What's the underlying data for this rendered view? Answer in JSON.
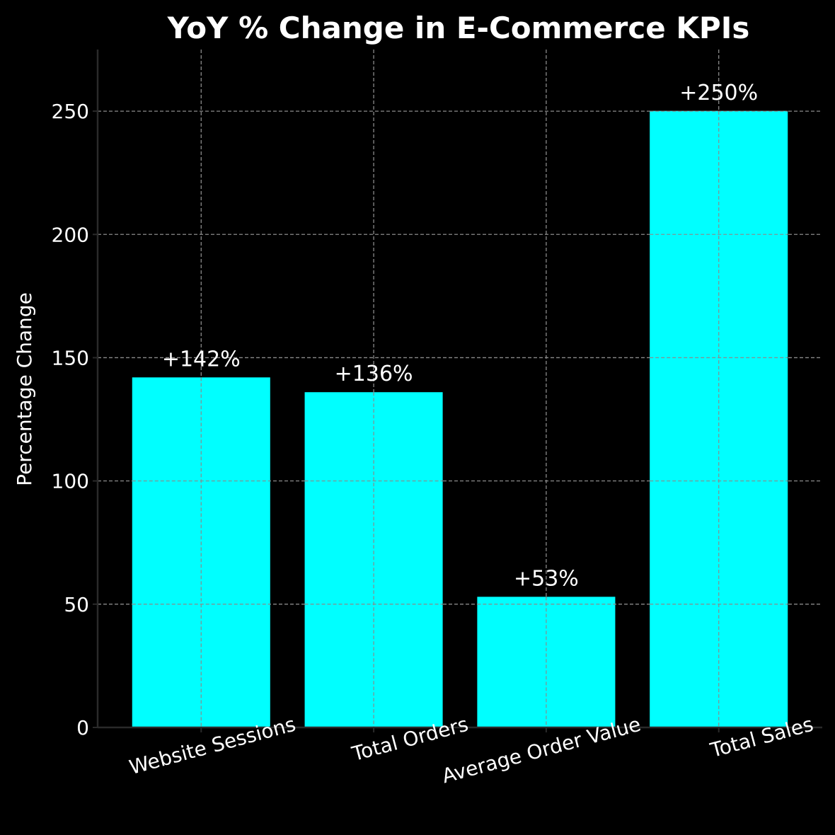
{
  "chart_data": {
    "type": "bar",
    "title": "YoY % Change in E-Commerce KPIs",
    "xlabel": "",
    "ylabel": "Percentage Change",
    "categories": [
      "Website Sessions",
      "Total Orders",
      "Average Order Value",
      "Total Sales"
    ],
    "values": [
      142,
      136,
      53,
      250
    ],
    "data_labels": [
      "+142%",
      "+136%",
      "+53%",
      "+250%"
    ],
    "ylim": [
      0,
      275
    ],
    "yticks": [
      0,
      50,
      100,
      150,
      200,
      250
    ],
    "ytick_labels": [
      "0",
      "50",
      "100",
      "150",
      "200",
      "250"
    ],
    "grid": true,
    "bar_color": "#00ffff",
    "background_color": "#000000",
    "text_color": "#ffffff"
  }
}
